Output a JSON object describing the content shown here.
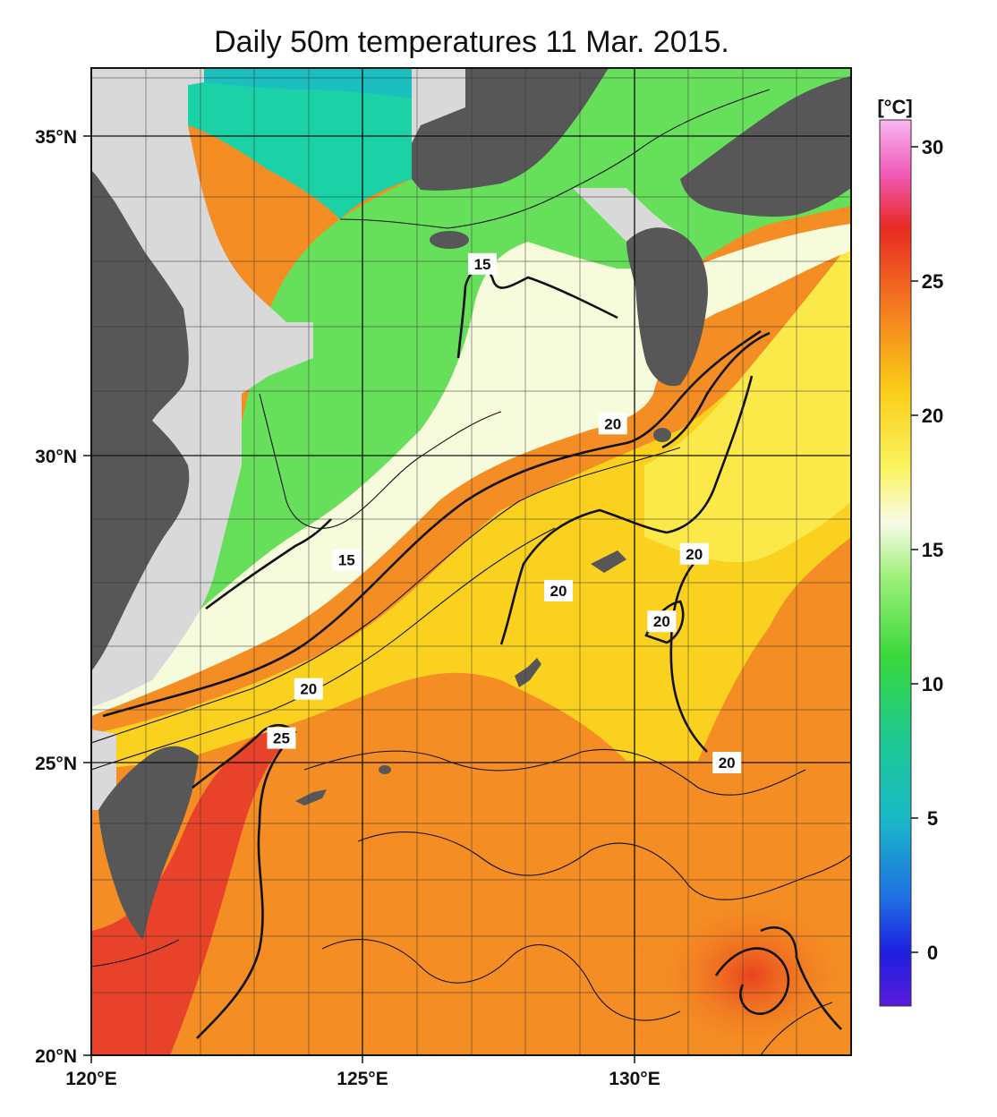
{
  "map": {
    "title": "Daily 50m temperatures 11 Mar. 2015.",
    "lon_labels": [
      "120°E",
      "125°E",
      "130°E"
    ],
    "lat_labels": [
      "35°N",
      "30°N",
      "25°N",
      "20°N"
    ],
    "colors": {
      "land": "#575757",
      "no_data": "#d9d9d9",
      "contour": "#111111"
    }
  },
  "colorbar": {
    "unit": "[°C]",
    "tick_labels": [
      "30",
      "25",
      "20",
      "15",
      "10",
      "5",
      "0"
    ],
    "range": [
      -2,
      31
    ],
    "stops": [
      {
        "value": 31,
        "color": "#f8b6f1"
      },
      {
        "value": 29,
        "color": "#f05ab8"
      },
      {
        "value": 27,
        "color": "#e82a22"
      },
      {
        "value": 24,
        "color": "#f47b20"
      },
      {
        "value": 21,
        "color": "#fbcc17"
      },
      {
        "value": 18,
        "color": "#fbf460"
      },
      {
        "value": 16,
        "color": "#f8fbe8"
      },
      {
        "value": 14,
        "color": "#9ff07a"
      },
      {
        "value": 11,
        "color": "#38d83a"
      },
      {
        "value": 8,
        "color": "#1ec990"
      },
      {
        "value": 5,
        "color": "#1ab9c8"
      },
      {
        "value": 2,
        "color": "#1f6fe2"
      },
      {
        "value": 0,
        "color": "#1d1fe0"
      },
      {
        "value": -2,
        "color": "#5a1bdb"
      }
    ]
  },
  "contour_labels": [
    {
      "text": "15",
      "lon": 127.2,
      "lat": 33.0
    },
    {
      "text": "15",
      "lon": 124.7,
      "lat": 28.3
    },
    {
      "text": "20",
      "lon": 129.6,
      "lat": 30.5
    },
    {
      "text": "20",
      "lon": 131.1,
      "lat": 28.4
    },
    {
      "text": "20",
      "lon": 128.6,
      "lat": 27.8
    },
    {
      "text": "20",
      "lon": 130.5,
      "lat": 27.3
    },
    {
      "text": "20",
      "lon": 124.0,
      "lat": 26.2
    },
    {
      "text": "25",
      "lon": 123.5,
      "lat": 25.4
    },
    {
      "text": "20",
      "lon": 131.7,
      "lat": 25.0
    }
  ]
}
